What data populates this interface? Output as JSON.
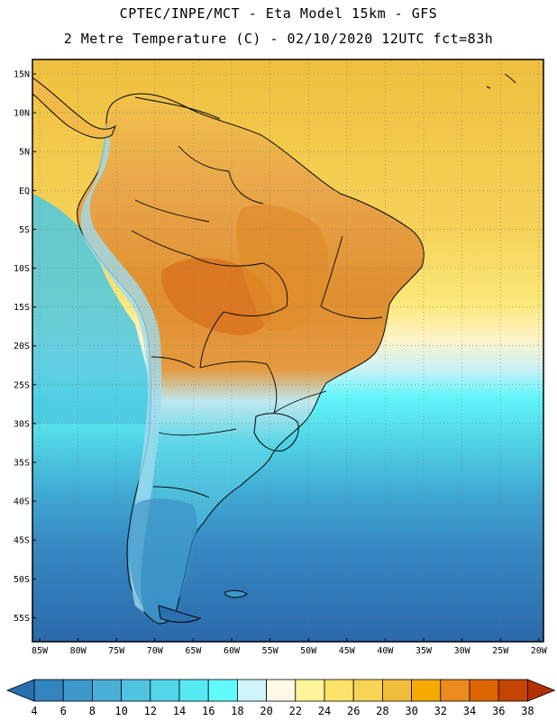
{
  "title_line1": "CPTEC/INPE/MCT -  Eta Model 15km - GFS",
  "title_line2": "2 Metre Temperature (C) - 02/10/2020 12UTC fct=83h",
  "map": {
    "lat_labels": [
      "15N",
      "10N",
      "5N",
      "EQ",
      "5S",
      "10S",
      "15S",
      "20S",
      "25S",
      "30S",
      "35S",
      "40S",
      "45S",
      "50S",
      "55S"
    ],
    "lon_labels": [
      "85W",
      "80W",
      "75W",
      "70W",
      "65W",
      "60W",
      "55W",
      "50W",
      "45W",
      "40W",
      "35W",
      "30W",
      "25W",
      "20W"
    ]
  },
  "colorbar": {
    "values": [
      "4",
      "6",
      "8",
      "10",
      "12",
      "14",
      "16",
      "18",
      "20",
      "22",
      "24",
      "26",
      "28",
      "30",
      "32",
      "34",
      "36",
      "38"
    ],
    "colors": [
      "#2a70b0",
      "#3484bf",
      "#3d98cb",
      "#48aed6",
      "#4fc4e0",
      "#52d6e8",
      "#56e9f3",
      "#62fbfc",
      "#cff5fb",
      "#fff8e6",
      "#fff49a",
      "#fde26a",
      "#f7d455",
      "#efbc3c",
      "#f6a900",
      "#ea8a1f",
      "#dd6500",
      "#c54400",
      "#b33000"
    ]
  }
}
